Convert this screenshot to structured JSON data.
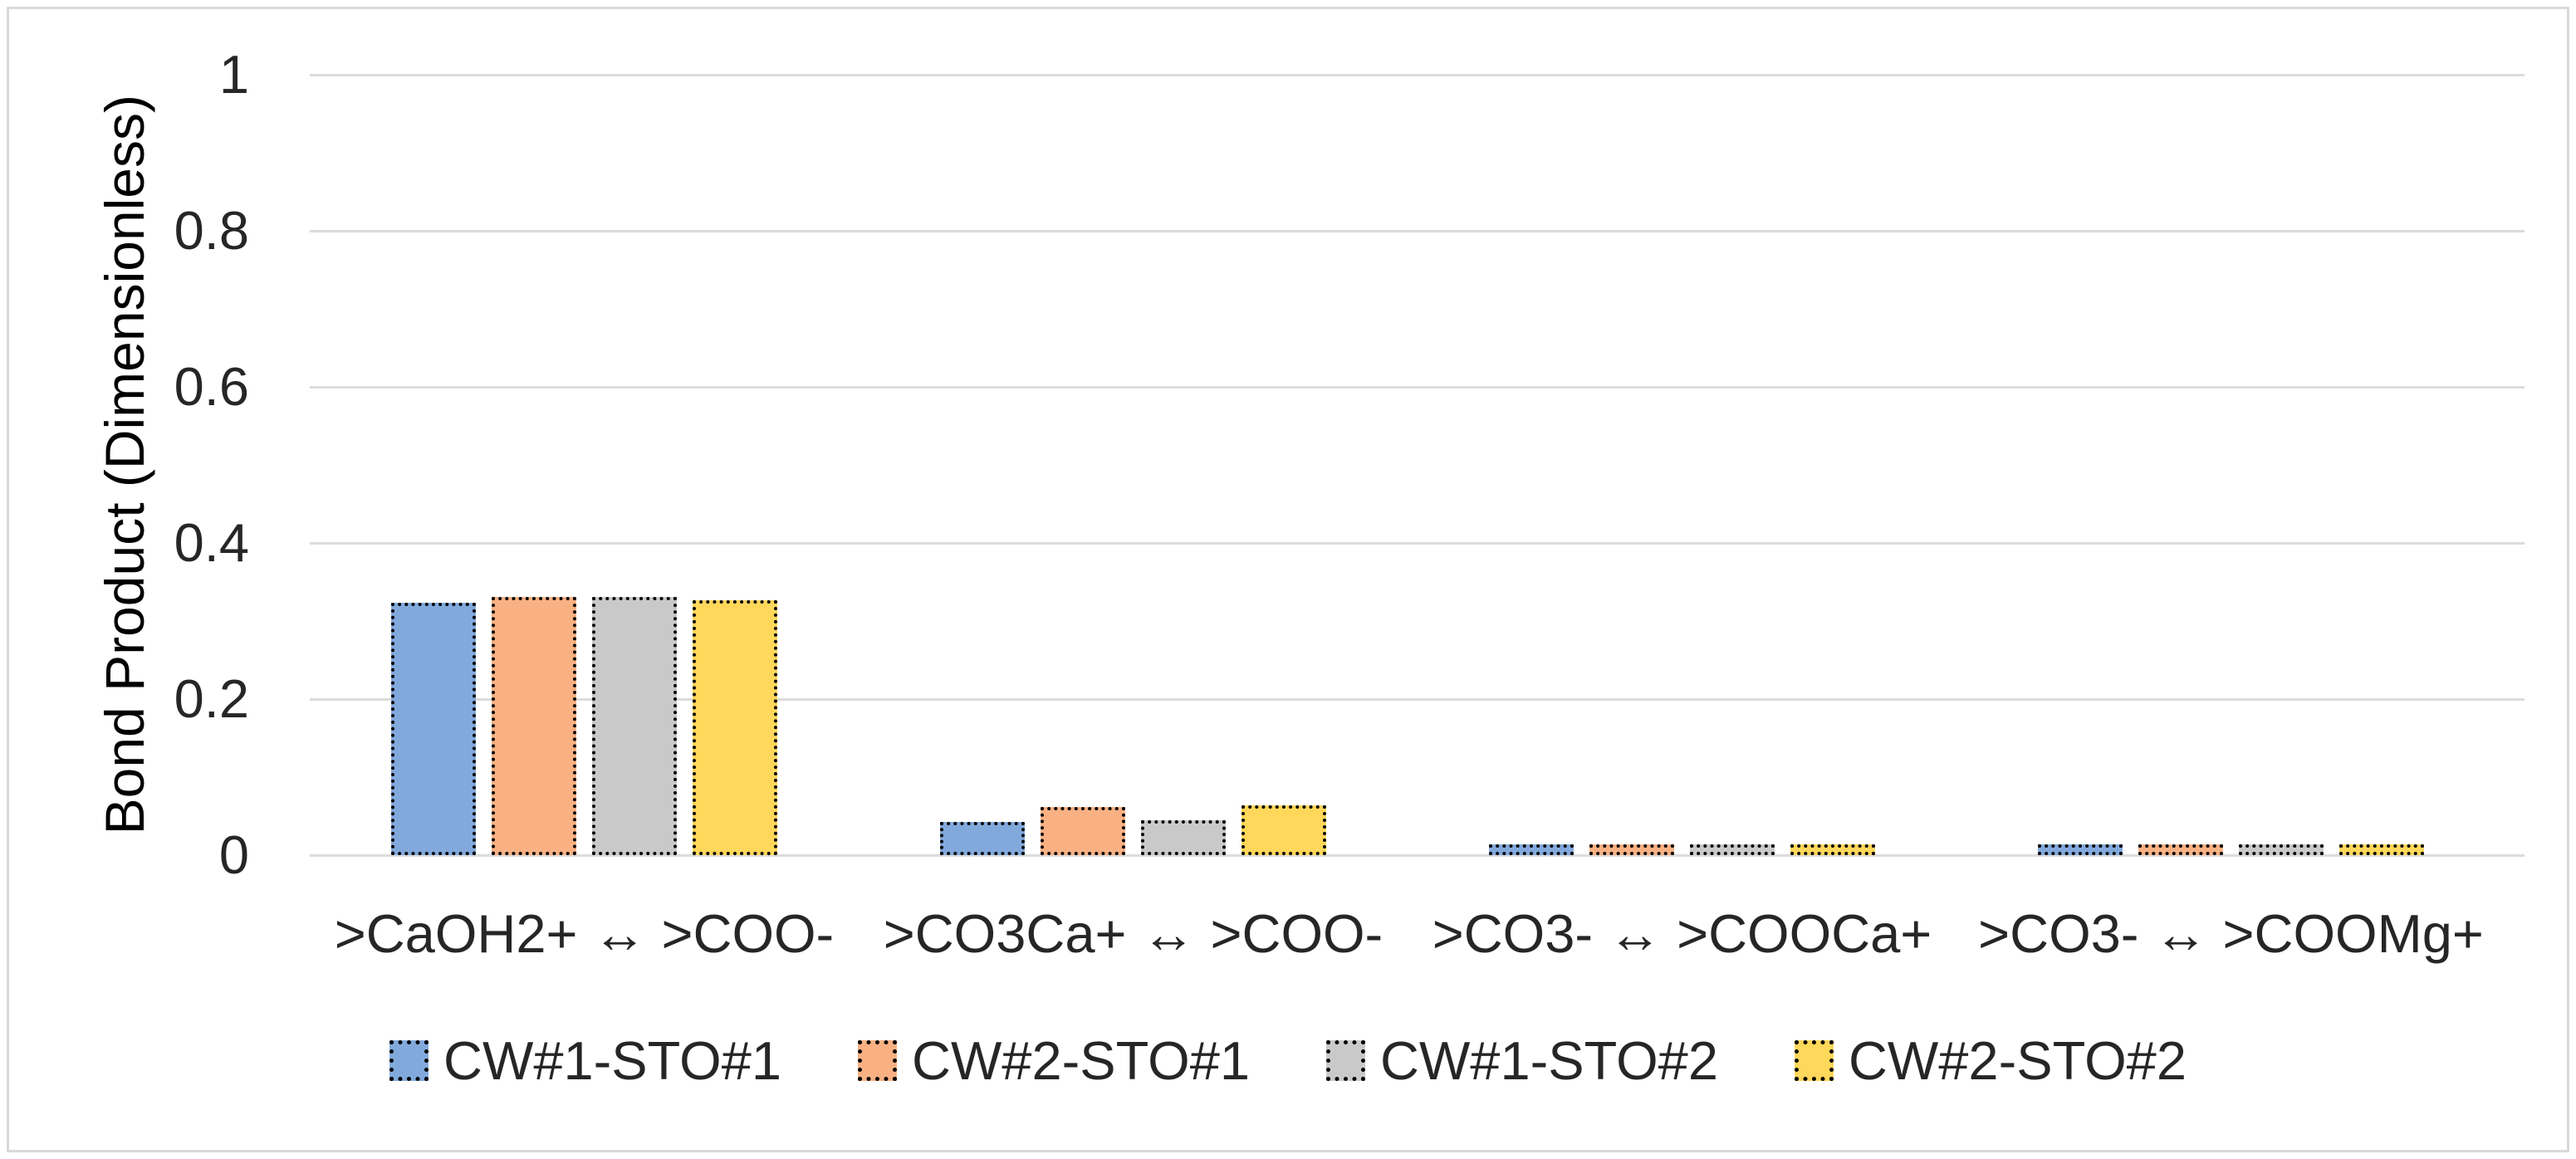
{
  "chart_data": {
    "type": "bar",
    "title": "",
    "ylabel": "Bond Product (Dimensionless)",
    "xlabel": "",
    "ylim": [
      0,
      1
    ],
    "yticks": [
      {
        "value": 0,
        "label": "0"
      },
      {
        "value": 0.2,
        "label": "0.2"
      },
      {
        "value": 0.4,
        "label": "0.4"
      },
      {
        "value": 0.6,
        "label": "0.6"
      },
      {
        "value": 0.8,
        "label": "0.8"
      },
      {
        "value": 1,
        "label": "1"
      }
    ],
    "grid": true,
    "legend_position": "bottom",
    "bar_outline": "black-dotted",
    "categories": [
      ">CaOH2+ ↔ >COO-",
      ">CO3Ca+ ↔ >COO-",
      ">CO3- ↔ >COOCa+",
      ">CO3- ↔ >COOMg+"
    ],
    "series": [
      {
        "name": "CW#1-STO#1",
        "color": "#82A9DC",
        "values": [
          0.315,
          0.034,
          0.005,
          0.005
        ]
      },
      {
        "name": "CW#2-STO#1",
        "color": "#F9B183",
        "values": [
          0.322,
          0.053,
          0.005,
          0.005
        ]
      },
      {
        "name": "CW#1-STO#2",
        "color": "#C9C9C9",
        "values": [
          0.322,
          0.036,
          0.005,
          0.005
        ]
      },
      {
        "name": "CW#2-STO#2",
        "color": "#FFD75A",
        "values": [
          0.318,
          0.055,
          0.005,
          0.005
        ]
      }
    ]
  },
  "styles": {
    "grid_color": "#DCDCDC",
    "text_color": "#262626",
    "border_color": "#D9D9D9"
  }
}
